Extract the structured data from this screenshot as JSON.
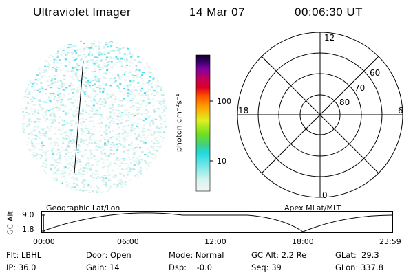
{
  "header": {
    "instrument": "Ultraviolet Imager",
    "date": "14 Mar 07",
    "time": "00:06:30 UT"
  },
  "colorbar": {
    "unit_label": "photon cm⁻²s⁻¹",
    "ticks": [
      "100",
      "10"
    ]
  },
  "polar_plot": {
    "mlt_labels": [
      "12",
      "18",
      "6",
      "0"
    ],
    "lat_labels": [
      "60",
      "70",
      "80"
    ]
  },
  "altitude_panel": {
    "y_label": "GC Alt",
    "y_ticks": [
      "9.0",
      "1.8"
    ],
    "left_title": "Geographic Lat/Lon",
    "right_title": "Apex MLat/MLT",
    "x_ticks": [
      "00:00",
      "06:00",
      "12:00",
      "18:00",
      "23:59"
    ]
  },
  "info": {
    "filter": "Flt: LBHL",
    "ip": "IP: 36.0",
    "door": "Door: Open",
    "gain": "Gain: 14",
    "mode": "Mode: Normal",
    "dsp": "Dsp:    -0.0",
    "gc_alt": "GC Alt: 2.2 Re",
    "seq": "Seq: 39",
    "glat": "GLat:  29.3",
    "glon": "GLon: 337.8"
  },
  "colors": {
    "noise_cyan": "#40e0f0",
    "noise_pale": "#c8ece8",
    "marker_red": "#d00000"
  }
}
